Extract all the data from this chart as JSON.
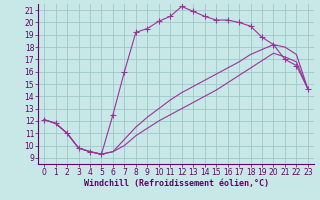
{
  "background_color": "#c8e8e8",
  "grid_color": "#a0c8c8",
  "line_color": "#993399",
  "marker_style": "+",
  "marker_size": 4,
  "xlabel": "Windchill (Refroidissement éolien,°C)",
  "xlabel_fontsize": 6,
  "tick_fontsize": 5.5,
  "xlim": [
    -0.5,
    23.5
  ],
  "ylim": [
    8.5,
    21.5
  ],
  "xticks": [
    0,
    1,
    2,
    3,
    4,
    5,
    6,
    7,
    8,
    9,
    10,
    11,
    12,
    13,
    14,
    15,
    16,
    17,
    18,
    19,
    20,
    21,
    22,
    23
  ],
  "yticks": [
    9,
    10,
    11,
    12,
    13,
    14,
    15,
    16,
    17,
    18,
    19,
    20,
    21
  ],
  "curve1_x": [
    0,
    1,
    2,
    3,
    4,
    5,
    6,
    7,
    8,
    9,
    10,
    11,
    12,
    13,
    14,
    15,
    16,
    17,
    18,
    19,
    20,
    21,
    22,
    23
  ],
  "curve1_y": [
    12.1,
    11.8,
    11.0,
    9.8,
    9.5,
    9.3,
    12.5,
    16.0,
    19.2,
    19.5,
    20.1,
    20.5,
    21.3,
    20.9,
    20.5,
    20.2,
    20.2,
    20.0,
    19.7,
    18.8,
    18.2,
    17.0,
    16.5,
    14.6
  ],
  "curve2_x": [
    0,
    1,
    2,
    3,
    4,
    5,
    6,
    7,
    8,
    9,
    10,
    11,
    12,
    13,
    14,
    15,
    16,
    17,
    18,
    19,
    20,
    21,
    22,
    23
  ],
  "curve2_y": [
    12.1,
    11.8,
    11.0,
    9.8,
    9.5,
    9.3,
    9.5,
    10.5,
    11.5,
    12.3,
    13.0,
    13.7,
    14.3,
    14.8,
    15.3,
    15.8,
    16.3,
    16.8,
    17.4,
    17.8,
    18.2,
    18.0,
    17.4,
    14.6
  ],
  "curve3_x": [
    0,
    1,
    2,
    3,
    4,
    5,
    6,
    7,
    8,
    9,
    10,
    11,
    12,
    13,
    14,
    15,
    16,
    17,
    18,
    19,
    20,
    21,
    22,
    23
  ],
  "curve3_y": [
    12.1,
    11.8,
    11.0,
    9.8,
    9.5,
    9.3,
    9.5,
    10.0,
    10.8,
    11.4,
    12.0,
    12.5,
    13.0,
    13.5,
    14.0,
    14.5,
    15.1,
    15.7,
    16.3,
    16.9,
    17.5,
    17.2,
    16.8,
    14.6
  ]
}
